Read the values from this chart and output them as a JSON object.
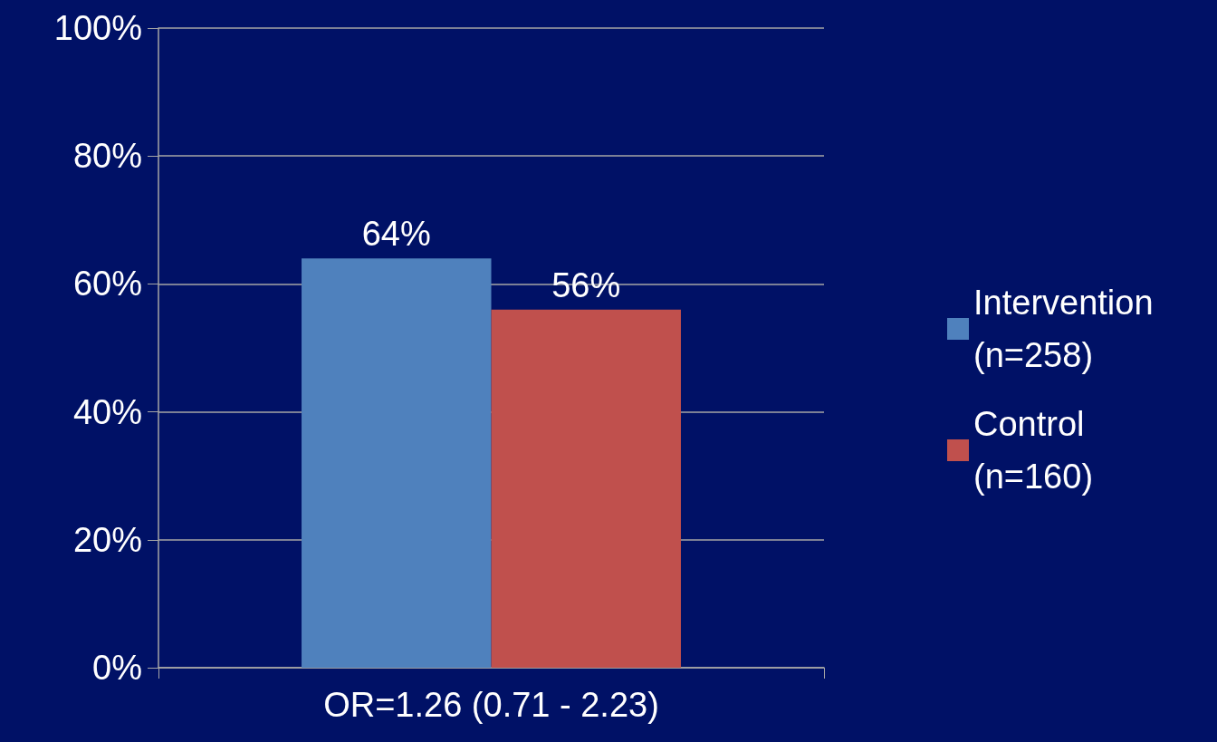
{
  "chart_data": {
    "type": "bar",
    "categories": [
      "OR=1.26 (0.71 - 2.23)"
    ],
    "series": [
      {
        "name": "Intervention (n=258)",
        "color": "#4f81bd",
        "values": [
          64
        ],
        "value_labels": [
          "64%"
        ]
      },
      {
        "name": "Control (n=160)",
        "color": "#c0504d",
        "values": [
          56
        ],
        "value_labels": [
          "56%"
        ]
      }
    ],
    "ylim": [
      0,
      100
    ],
    "yticks": [
      {
        "value": 0,
        "label": "0%"
      },
      {
        "value": 20,
        "label": "20%"
      },
      {
        "value": 40,
        "label": "40%"
      },
      {
        "value": 60,
        "label": "60%"
      },
      {
        "value": 80,
        "label": "80%"
      },
      {
        "value": 100,
        "label": "100%"
      }
    ],
    "grid": "y",
    "legend": "right"
  }
}
